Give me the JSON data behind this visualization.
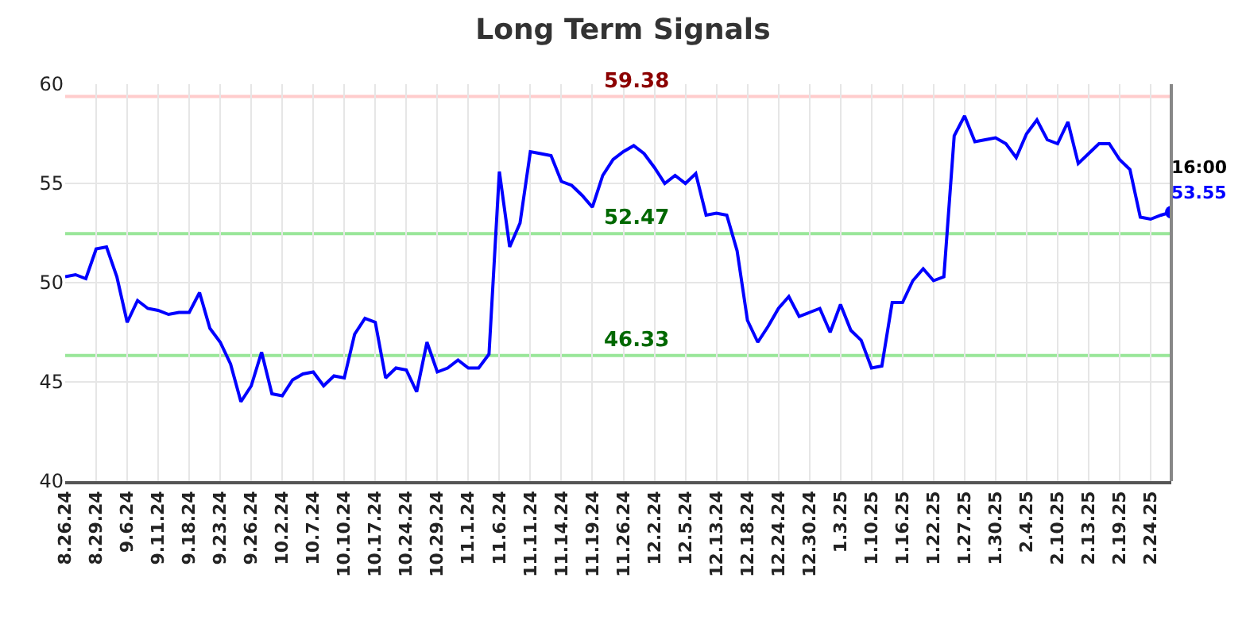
{
  "chart_data": {
    "type": "line",
    "title": "Long Term Signals",
    "categories": [
      "8.26.24",
      null,
      null,
      "8.29.24",
      null,
      null,
      "9.6.24",
      null,
      null,
      "9.11.24",
      null,
      null,
      "9.18.24",
      null,
      null,
      "9.23.24",
      null,
      null,
      "9.26.24",
      null,
      null,
      "10.2.24",
      null,
      null,
      "10.7.24",
      null,
      null,
      "10.10.24",
      null,
      null,
      "10.17.24",
      null,
      null,
      "10.24.24",
      null,
      null,
      "10.29.24",
      null,
      null,
      "11.1.24",
      null,
      null,
      "11.6.24",
      null,
      null,
      "11.11.24",
      null,
      null,
      "11.14.24",
      null,
      null,
      "11.19.24",
      null,
      null,
      "11.26.24",
      null,
      null,
      "12.2.24",
      null,
      null,
      "12.5.24",
      null,
      null,
      "12.13.24",
      null,
      null,
      "12.18.24",
      null,
      null,
      "12.24.24",
      null,
      null,
      "12.30.24",
      null,
      null,
      "1.3.25",
      null,
      null,
      "1.10.25",
      null,
      null,
      "1.16.25",
      null,
      null,
      "1.22.25",
      null,
      null,
      "1.27.25",
      null,
      null,
      "1.30.25",
      null,
      null,
      "2.4.25",
      null,
      null,
      "2.10.25",
      null,
      null,
      "2.13.25",
      null,
      null,
      "2.19.25",
      null,
      null,
      "2.24.25",
      null,
      null
    ],
    "series": [
      {
        "color": "#0000ff",
        "values": [
          50.3,
          50.4,
          50.2,
          51.7,
          51.8,
          50.3,
          48.0,
          49.1,
          48.7,
          48.6,
          48.4,
          48.5,
          48.5,
          49.5,
          47.7,
          47.0,
          45.9,
          44.0,
          44.8,
          46.5,
          44.4,
          44.3,
          45.1,
          45.4,
          45.5,
          44.8,
          45.3,
          45.2,
          47.4,
          48.2,
          48.0,
          45.2,
          45.7,
          45.6,
          44.5,
          47.0,
          45.5,
          45.7,
          46.1,
          45.7,
          45.7,
          46.4,
          55.6,
          51.8,
          53.0,
          56.6,
          56.5,
          56.4,
          55.1,
          54.9,
          54.4,
          53.8,
          55.4,
          56.2,
          56.6,
          56.9,
          56.5,
          55.8,
          55.0,
          55.4,
          55.0,
          55.5,
          53.4,
          53.5,
          53.4,
          51.6,
          48.1,
          47.0,
          47.8,
          48.7,
          49.3,
          48.3,
          48.5,
          48.7,
          47.5,
          48.9,
          47.6,
          47.1,
          45.7,
          45.8,
          49.0,
          49.0,
          50.1,
          50.7,
          50.1,
          50.3,
          57.4,
          58.4,
          57.1,
          57.2,
          57.3,
          57.0,
          56.3,
          57.5,
          58.2,
          57.2,
          57.0,
          58.1,
          56.0,
          56.5,
          57.0,
          57.0,
          56.2,
          55.7,
          53.3,
          53.2,
          53.4,
          53.55
        ]
      },
      {
        "type": "scatter",
        "color": "#0000ff",
        "values": [
          null,
          null,
          null,
          null,
          null,
          null,
          null,
          null,
          null,
          null,
          null,
          null,
          null,
          null,
          null,
          null,
          null,
          null,
          null,
          null,
          null,
          null,
          null,
          null,
          null,
          null,
          null,
          null,
          null,
          null,
          null,
          null,
          null,
          null,
          null,
          null,
          null,
          null,
          null,
          null,
          null,
          null,
          null,
          null,
          null,
          null,
          null,
          null,
          null,
          null,
          null,
          null,
          null,
          null,
          null,
          null,
          null,
          null,
          null,
          null,
          null,
          null,
          null,
          null,
          null,
          null,
          null,
          null,
          null,
          null,
          null,
          null,
          null,
          null,
          null,
          null,
          null,
          null,
          null,
          null,
          null,
          null,
          null,
          null,
          null,
          null,
          null,
          null,
          null,
          null,
          null,
          null,
          null,
          null,
          null,
          null,
          null,
          null,
          null,
          null,
          null,
          null,
          null,
          null,
          null,
          null,
          null,
          53.55
        ]
      }
    ],
    "ylim": [
      40,
      60
    ],
    "yticks": [
      40,
      45,
      50,
      55,
      60
    ],
    "grid": true,
    "legend": false,
    "line_style": "solid",
    "ref_lines": [
      {
        "axis": "y",
        "value": 59.38,
        "label": "59.38",
        "color": "#ffcccc"
      },
      {
        "axis": "y",
        "value": 52.47,
        "label": "52.47",
        "color": "#99e699"
      },
      {
        "axis": "y",
        "value": 46.33,
        "label": "46.33",
        "color": "#99e699"
      }
    ],
    "annotations": [
      "16:00",
      "53.55"
    ]
  }
}
